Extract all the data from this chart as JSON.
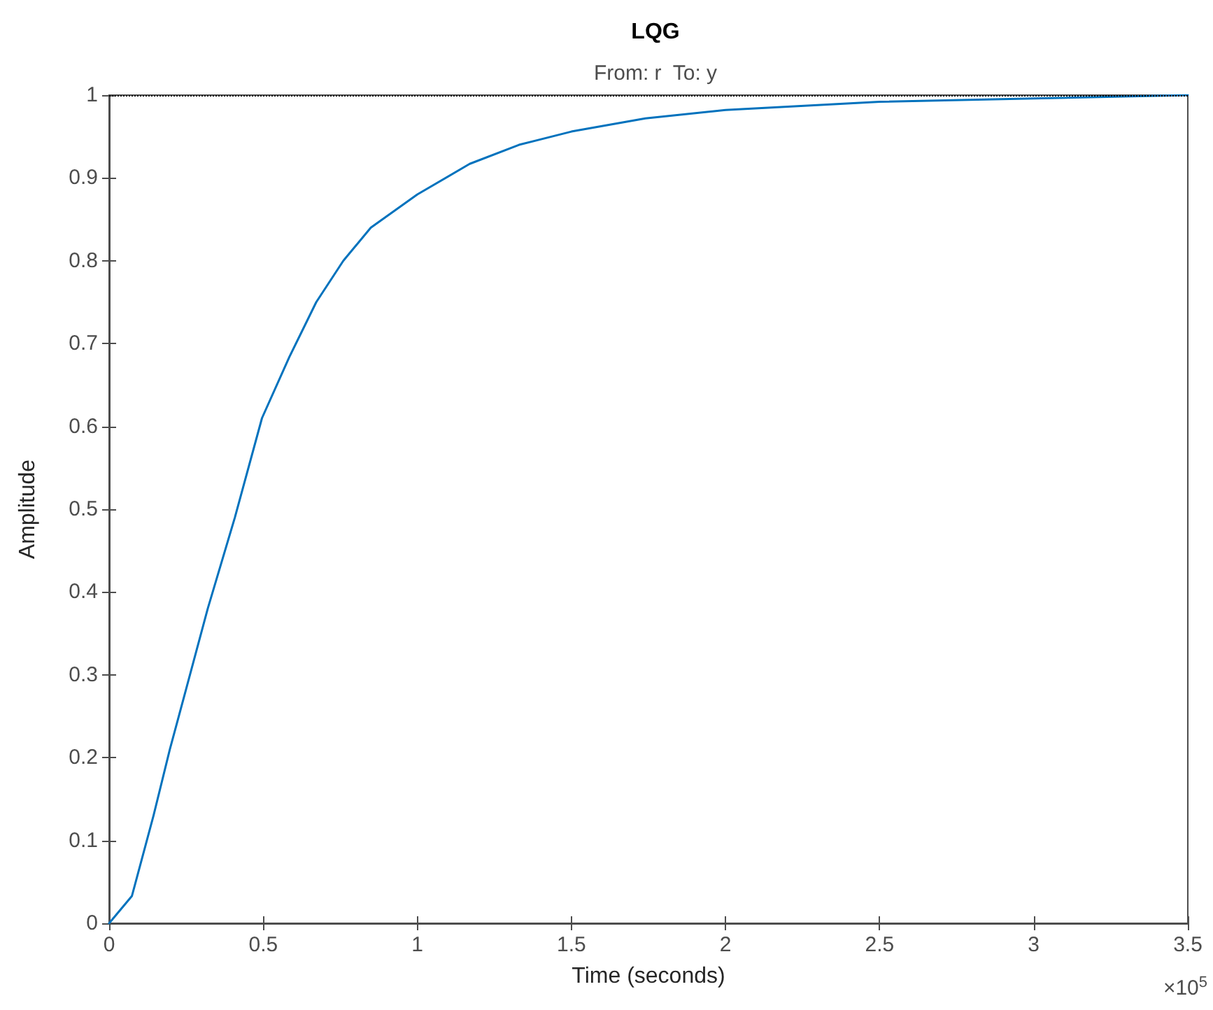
{
  "chart_data": {
    "type": "line",
    "title": "LQG",
    "subtitle": "From: r  To: y",
    "xlabel": "Time (seconds)",
    "ylabel": "Amplitude",
    "annotations": [
      "×10$^{5}$"
    ],
    "x": [
      0,
      0.074,
      0.144,
      0.197,
      0.25,
      0.32,
      0.408,
      0.496,
      0.585,
      0.672,
      0.76,
      0.849,
      1.0,
      1.17,
      1.33,
      1.5,
      1.74,
      2.0,
      2.5,
      3.0,
      3.5
    ],
    "series": [
      {
        "color": "#0072bd",
        "values": [
          0,
          0.033,
          0.13,
          0.21,
          0.283,
          0.38,
          0.49,
          0.61,
          0.684,
          0.75,
          0.8,
          0.84,
          0.88,
          0.917,
          0.94,
          0.956,
          0.972,
          0.982,
          0.992,
          0.996,
          1.0
        ]
      }
    ],
    "xlim": [
      0,
      3.5
    ],
    "xticks": [
      0,
      0.5,
      1,
      1.5,
      2,
      2.5,
      3,
      3.5
    ],
    "ylim": [
      0,
      1
    ],
    "yticks": [
      0,
      0.1,
      0.2,
      0.3,
      0.4,
      0.5,
      0.6,
      0.7,
      0.8,
      0.9,
      1
    ],
    "ref_lines": [
      {
        "axis": "y",
        "value": 1,
        "color": "#000000",
        "line_style": "dotted"
      }
    ],
    "grid": false,
    "marker": "none",
    "line_style": "solid"
  }
}
